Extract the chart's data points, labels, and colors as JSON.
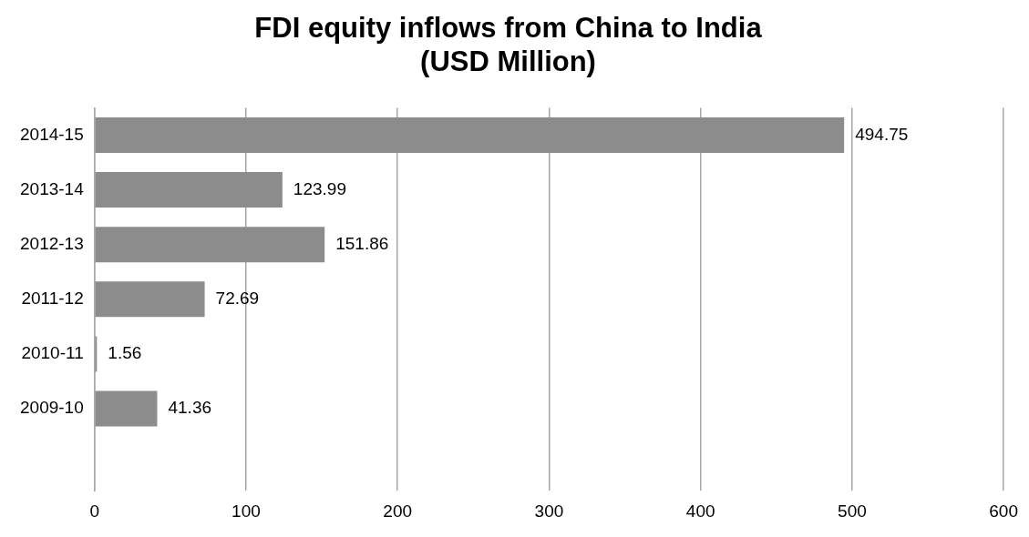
{
  "chart_data": {
    "type": "bar",
    "orientation": "horizontal",
    "title": "FDI equity inflows from China to India\n(USD Million)",
    "categories": [
      "2014-15",
      "2013-14",
      "2012-13",
      "2011-12",
      "2010-11",
      "2009-10",
      null
    ],
    "values": [
      494.75,
      123.99,
      151.86,
      72.69,
      1.56,
      41.36,
      null
    ],
    "color": "#8c8c8c",
    "xlim": [
      0,
      600
    ],
    "xticks": [
      0,
      100,
      200,
      300,
      400,
      500,
      600
    ],
    "grid": "x",
    "data_labels": true,
    "legend": false
  }
}
